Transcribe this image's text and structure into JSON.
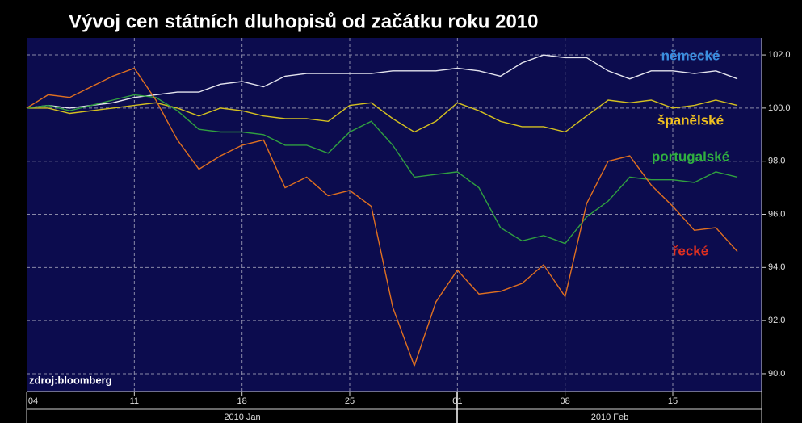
{
  "chart_data": {
    "type": "line",
    "title": "Vývoj cen státních dluhopisů od začátku roku 2010",
    "source": "zdroj:bloomberg",
    "categories": [
      "04",
      null,
      null,
      null,
      null,
      "11",
      null,
      null,
      null,
      null,
      "18",
      null,
      null,
      null,
      null,
      "25",
      null,
      null,
      null,
      null,
      "01",
      null,
      null,
      null,
      null,
      "08",
      null,
      null,
      null,
      null,
      "15",
      null,
      null,
      null
    ],
    "month_labels": [
      "2010 Jan",
      "2010 Feb"
    ],
    "ylim": [
      89.33,
      102.64
    ],
    "yticks": [
      {
        "value": 90,
        "label": "90.0"
      },
      {
        "value": 92,
        "label": "92.0"
      },
      {
        "value": 94,
        "label": "94.0"
      },
      {
        "value": 96,
        "label": "96.0"
      },
      {
        "value": 98,
        "label": "98.0"
      },
      {
        "value": 100,
        "label": "100.0"
      },
      {
        "value": 102,
        "label": "102.0"
      }
    ],
    "grid": true,
    "series": [
      {
        "name": "německé",
        "color": "#e4e4ee",
        "label_color": "#3a8ee0",
        "values": [
          100.0,
          100.1,
          100.0,
          100.1,
          100.2,
          100.4,
          100.5,
          100.6,
          100.6,
          100.9,
          101.0,
          100.8,
          101.2,
          101.3,
          101.3,
          101.3,
          101.3,
          101.4,
          101.4,
          101.4,
          101.5,
          101.4,
          101.2,
          101.7,
          102.0,
          101.9,
          101.9,
          101.4,
          101.1,
          101.4,
          101.4,
          101.3,
          101.4,
          101.1
        ]
      },
      {
        "name": "španělské",
        "color": "#d4c020",
        "label_color": "#f0c020",
        "values": [
          100.0,
          100.0,
          99.8,
          99.9,
          100.0,
          100.1,
          100.2,
          100.0,
          99.7,
          100.0,
          99.9,
          99.7,
          99.6,
          99.6,
          99.5,
          100.1,
          100.2,
          99.6,
          99.1,
          99.5,
          100.2,
          99.9,
          99.5,
          99.3,
          99.3,
          99.1,
          99.7,
          100.3,
          100.2,
          100.3,
          100.0,
          100.1,
          100.3,
          100.1
        ]
      },
      {
        "name": "portugalské",
        "color": "#30a040",
        "label_color": "#30b040",
        "values": [
          100.0,
          100.1,
          99.9,
          100.1,
          100.3,
          100.5,
          100.4,
          99.9,
          99.2,
          99.1,
          99.1,
          99.0,
          98.6,
          98.6,
          98.3,
          99.1,
          99.5,
          98.6,
          97.4,
          97.5,
          97.6,
          97.0,
          95.5,
          95.0,
          95.2,
          94.9,
          95.9,
          96.5,
          97.4,
          97.3,
          97.3,
          97.2,
          97.6,
          97.4
        ]
      },
      {
        "name": "řecké",
        "color": "#e07020",
        "label_color": "#e03020",
        "values": [
          100.0,
          100.5,
          100.4,
          100.8,
          101.2,
          101.5,
          100.3,
          98.8,
          97.7,
          98.2,
          98.6,
          98.8,
          97.0,
          97.4,
          96.7,
          96.9,
          96.3,
          92.5,
          90.3,
          92.7,
          93.9,
          93.0,
          93.1,
          93.4,
          94.1,
          92.9,
          96.4,
          98.0,
          98.2,
          97.1,
          96.3,
          95.4,
          95.5,
          94.6
        ]
      }
    ]
  }
}
